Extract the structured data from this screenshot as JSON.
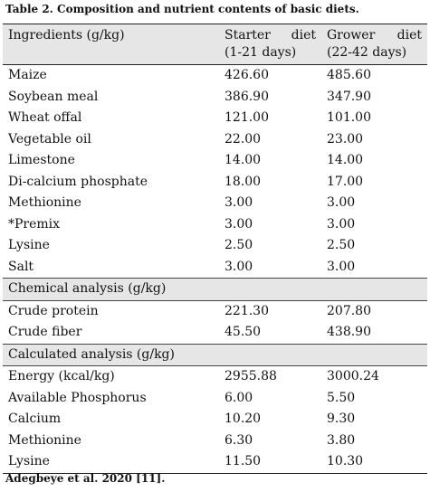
{
  "caption": "Table 2. Composition and nutrient contents of basic diets.",
  "header": {
    "col1": "Ingredients (g/kg)",
    "col2_line1_a": "Starter",
    "col2_line1_b": "diet",
    "col2_line2": "(1-21 days)",
    "col3_line1_a": "Grower",
    "col3_line1_b": "diet",
    "col3_line2": "(22-42 days)"
  },
  "ingredients": [
    {
      "name": "Maize",
      "starter": "426.60",
      "grower": "485.60"
    },
    {
      "name": "Soybean meal",
      "starter": "386.90",
      "grower": "347.90"
    },
    {
      "name": "Wheat offal",
      "starter": "121.00",
      "grower": "101.00"
    },
    {
      "name": "Vegetable oil",
      "starter": "22.00",
      "grower": "23.00"
    },
    {
      "name": "Limestone",
      "starter": "14.00",
      "grower": "14.00"
    },
    {
      "name": "Di-calcium phosphate",
      "starter": "18.00",
      "grower": "17.00"
    },
    {
      "name": "Methionine",
      "starter": "3.00",
      "grower": "3.00"
    },
    {
      "name": "*Premix",
      "starter": "3.00",
      "grower": "3.00"
    },
    {
      "name": "Lysine",
      "starter": "2.50",
      "grower": "2.50"
    },
    {
      "name": "Salt",
      "starter": "3.00",
      "grower": "3.00"
    }
  ],
  "chemical_section": "Chemical analysis (g/kg)",
  "chemical": [
    {
      "name": "Crude protein",
      "starter": "221.30",
      "grower": "207.80"
    },
    {
      "name": "Crude fiber",
      "starter": "45.50",
      "grower": "438.90"
    }
  ],
  "calculated_section": "Calculated analysis (g/kg)",
  "calculated": [
    {
      "name": "Energy (kcal/kg)",
      "starter": "2955.88",
      "grower": "3000.24"
    },
    {
      "name": "Available Phosphorus",
      "starter": "6.00",
      "grower": "5.50"
    },
    {
      "name": "Calcium",
      "starter": "10.20",
      "grower": "9.30"
    },
    {
      "name": "Methionine",
      "starter": "6.30",
      "grower": "3.80"
    },
    {
      "name": "Lysine",
      "starter": "11.50",
      "grower": "10.30"
    }
  ],
  "footer": "Adegbeye et al. 2020 [11]."
}
